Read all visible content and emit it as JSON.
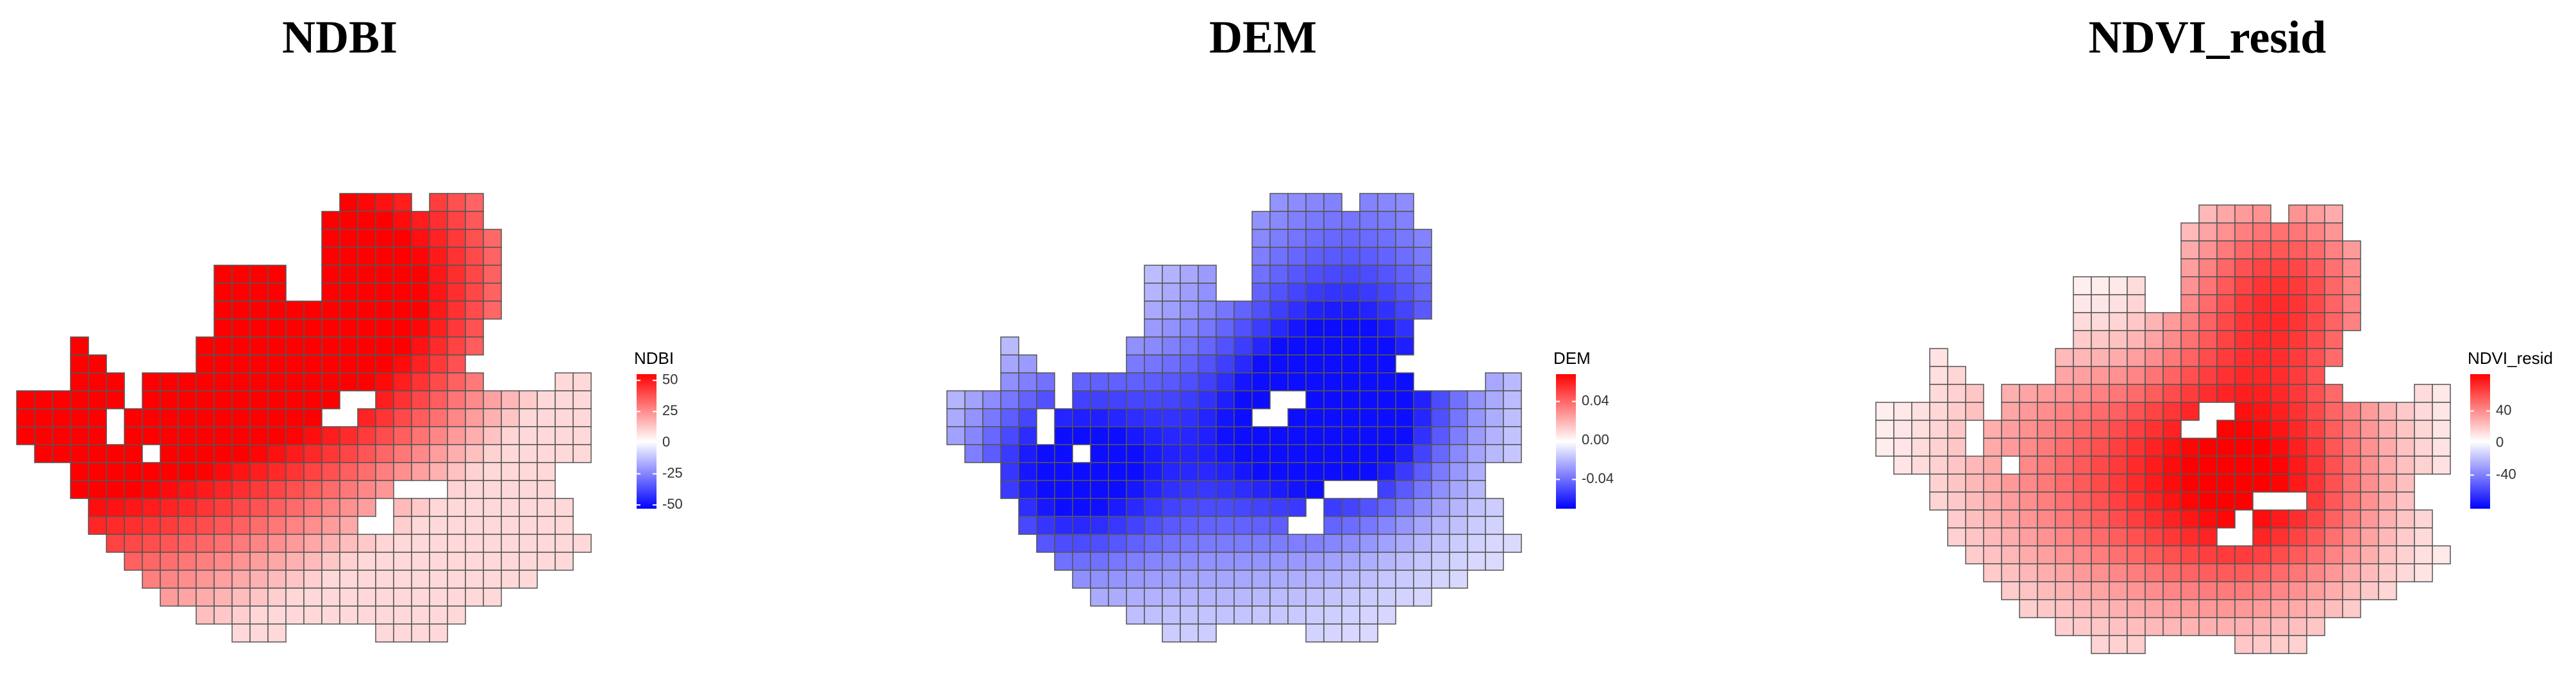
{
  "panels": [
    {
      "title": "NDBI",
      "legend": {
        "title": "NDBI",
        "ticks": [
          50,
          25,
          0,
          -25,
          -50
        ],
        "lim": [
          -53,
          55
        ]
      }
    },
    {
      "title": "DEM",
      "legend": {
        "title": "DEM",
        "ticks": [
          0.04,
          {
            "value": 0,
            "label": "0.00"
          },
          -0.04
        ],
        "lim": [
          -0.07,
          0.068
        ]
      }
    },
    {
      "title": "NDVI_resid",
      "legend": {
        "title": "NDVI_resid",
        "ticks": [
          40,
          0,
          -40
        ],
        "lim": [
          -82,
          86
        ]
      }
    }
  ]
}
